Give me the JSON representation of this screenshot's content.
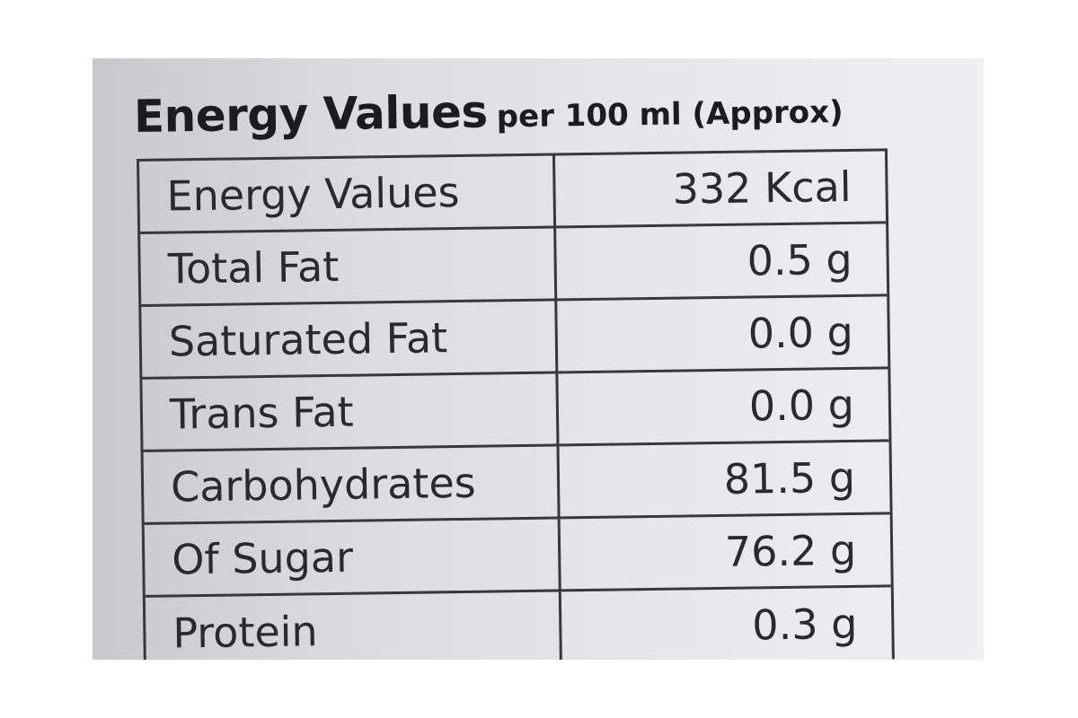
{
  "header": {
    "title": "Energy Values",
    "subtitle": "per 100 ml (Approx)"
  },
  "table": {
    "rows": [
      [
        "Energy Values",
        "332 Kcal"
      ],
      [
        "Total Fat",
        "0.5 g"
      ],
      [
        "Saturated Fat",
        "0.0 g"
      ],
      [
        "Trans Fat",
        "0.0 g"
      ],
      [
        "Carbohydrates",
        "81.5 g"
      ],
      [
        "Of Sugar",
        "76.2 g"
      ],
      [
        "Protein",
        "0.3 g"
      ]
    ]
  }
}
